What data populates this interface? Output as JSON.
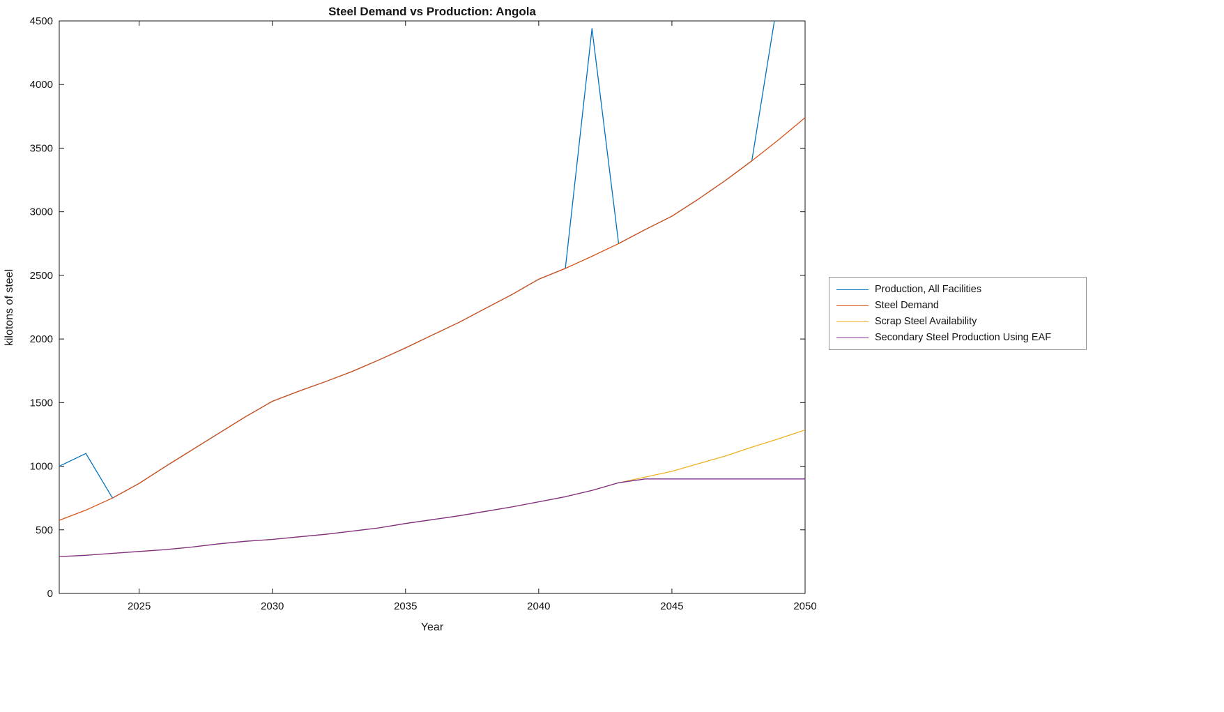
{
  "chart_data": {
    "type": "line",
    "title": "Steel Demand vs Production: Angola",
    "xlabel": "Year",
    "ylabel": "kilotons of steel",
    "xlim": [
      2022,
      2050
    ],
    "ylim": [
      0,
      4500
    ],
    "x_ticks": [
      2025,
      2030,
      2035,
      2040,
      2045,
      2050
    ],
    "y_ticks": [
      0,
      500,
      1000,
      1500,
      2000,
      2500,
      3000,
      3500,
      4000,
      4500
    ],
    "grid": false,
    "legend_position": "right-outside",
    "axis_color": "#151515",
    "x": [
      2022,
      2023,
      2024,
      2025,
      2026,
      2027,
      2028,
      2029,
      2030,
      2031,
      2032,
      2033,
      2034,
      2035,
      2036,
      2037,
      2038,
      2039,
      2040,
      2041,
      2042,
      2043,
      2044,
      2045,
      2046,
      2047,
      2048,
      2049,
      2050
    ],
    "series": [
      {
        "name": "Production, All Facilities",
        "color": "#0072BD",
        "values": [
          1000,
          1100,
          750,
          865,
          1000,
          1130,
          1260,
          1390,
          1510,
          1590,
          1665,
          1745,
          1835,
          1930,
          2030,
          2130,
          2240,
          2350,
          2470,
          2555,
          4440,
          2750,
          2860,
          2965,
          3100,
          3245,
          3400,
          4700,
          4900
        ]
      },
      {
        "name": "Steel Demand",
        "color": "#D95319",
        "values": [
          575,
          655,
          750,
          865,
          1000,
          1130,
          1260,
          1390,
          1510,
          1590,
          1665,
          1745,
          1835,
          1930,
          2030,
          2130,
          2240,
          2350,
          2470,
          2555,
          2650,
          2750,
          2860,
          2965,
          3100,
          3245,
          3400,
          3565,
          3740
        ]
      },
      {
        "name": "Scrap Steel Availability",
        "color": "#EDB120",
        "values": [
          290,
          300,
          315,
          330,
          345,
          365,
          390,
          410,
          425,
          445,
          465,
          490,
          515,
          550,
          580,
          610,
          645,
          680,
          720,
          760,
          810,
          870,
          915,
          960,
          1020,
          1080,
          1150,
          1215,
          1285
        ]
      },
      {
        "name": "Secondary Steel Production Using EAF",
        "color": "#7E2F8E",
        "values": [
          290,
          300,
          315,
          330,
          345,
          365,
          390,
          410,
          425,
          445,
          465,
          490,
          515,
          550,
          580,
          610,
          645,
          680,
          720,
          760,
          810,
          870,
          900,
          900,
          900,
          900,
          900,
          900,
          900
        ]
      }
    ]
  }
}
